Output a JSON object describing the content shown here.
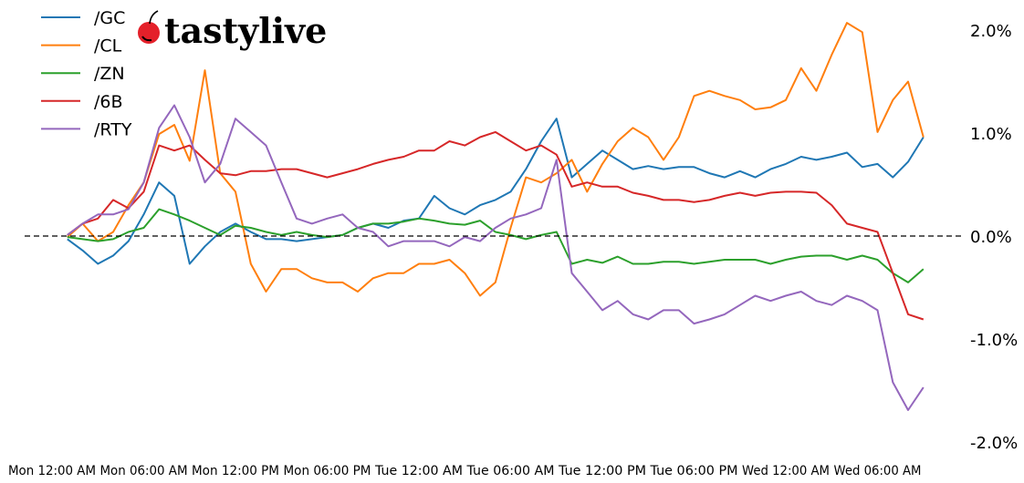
{
  "logo": {
    "text": "tastylive",
    "cherry_color": "#e4202a"
  },
  "chart_data": {
    "type": "line",
    "title": "",
    "xlabel": "",
    "ylabel": "",
    "ylim": [
      -2.0,
      2.0
    ],
    "grid": false,
    "legend_placement": "top-left",
    "zero_line": {
      "value": 0,
      "style": "dashed",
      "color": "#000000"
    },
    "y_ticks": [
      {
        "value": 2.0,
        "label": "2.0%"
      },
      {
        "value": 1.0,
        "label": "1.0%"
      },
      {
        "value": 0.0,
        "label": "0.0%"
      },
      {
        "value": -1.0,
        "label": "-1.0%"
      },
      {
        "value": -2.0,
        "label": "-2.0%"
      }
    ],
    "x_ticks": [
      {
        "value": "Mon 00:00",
        "label": "Mon 12:00 AM"
      },
      {
        "value": "Mon 06:00",
        "label": "Mon 06:00 AM"
      },
      {
        "value": "Mon 12:00",
        "label": "Mon 12:00 PM"
      },
      {
        "value": "Mon 18:00",
        "label": "Mon 06:00 PM"
      },
      {
        "value": "Tue 00:00",
        "label": "Tue 12:00 AM"
      },
      {
        "value": "Tue 06:00",
        "label": "Tue 06:00 AM"
      },
      {
        "value": "Tue 12:00",
        "label": "Tue 12:00 PM"
      },
      {
        "value": "Tue 18:00",
        "label": "Tue 06:00 PM"
      },
      {
        "value": "Wed 00:00",
        "label": "Wed 12:00 AM"
      },
      {
        "value": "Wed 06:00",
        "label": "Wed 06:00 AM"
      }
    ],
    "x": [
      "Mon 01:00",
      "Mon 02:00",
      "Mon 03:00",
      "Mon 04:00",
      "Mon 05:00",
      "Mon 06:00",
      "Mon 07:00",
      "Mon 08:00",
      "Mon 09:00",
      "Mon 10:00",
      "Mon 11:00",
      "Mon 12:00",
      "Mon 13:00",
      "Mon 14:00",
      "Mon 15:00",
      "Mon 16:00",
      "Mon 17:00",
      "Mon 18:00",
      "Mon 19:00",
      "Mon 20:00",
      "Mon 21:00",
      "Mon 22:00",
      "Mon 23:00",
      "Tue 00:00",
      "Tue 01:00",
      "Tue 02:00",
      "Tue 03:00",
      "Tue 04:00",
      "Tue 05:00",
      "Tue 06:00",
      "Tue 07:00",
      "Tue 08:00",
      "Tue 09:00",
      "Tue 10:00",
      "Tue 11:00",
      "Tue 12:00",
      "Tue 13:00",
      "Tue 14:00",
      "Tue 15:00",
      "Tue 16:00",
      "Tue 17:00",
      "Tue 18:00",
      "Tue 19:00",
      "Tue 20:00",
      "Tue 21:00",
      "Tue 22:00",
      "Tue 23:00",
      "Wed 00:00",
      "Wed 01:00",
      "Wed 02:00",
      "Wed 03:00",
      "Wed 04:00",
      "Wed 05:00",
      "Wed 06:00",
      "Wed 07:00",
      "Wed 08:00",
      "Wed 09:00"
    ],
    "series": [
      {
        "name": "/GC",
        "color": "#1f77b4",
        "values": [
          -0.03,
          -0.14,
          -0.27,
          -0.19,
          -0.05,
          0.21,
          0.52,
          0.39,
          -0.27,
          -0.1,
          0.04,
          0.12,
          0.04,
          -0.03,
          -0.03,
          -0.05,
          -0.03,
          -0.01,
          0.01,
          0.08,
          0.12,
          0.08,
          0.15,
          0.17,
          0.39,
          0.27,
          0.21,
          0.3,
          0.35,
          0.43,
          0.65,
          0.92,
          1.14,
          0.57,
          0.7,
          0.83,
          0.74,
          0.65,
          0.68,
          0.65,
          0.67,
          0.67,
          0.61,
          0.57,
          0.63,
          0.57,
          0.65,
          0.7,
          0.77,
          0.74,
          0.77,
          0.81,
          0.67,
          0.7,
          0.57,
          0.72,
          0.96
        ]
      },
      {
        "name": "/CL",
        "color": "#ff7f0e",
        "values": [
          -0.01,
          0.12,
          -0.05,
          0.04,
          0.3,
          0.52,
          0.99,
          1.08,
          0.73,
          1.61,
          0.61,
          0.43,
          -0.27,
          -0.54,
          -0.32,
          -0.32,
          -0.41,
          -0.45,
          -0.45,
          -0.54,
          -0.41,
          -0.36,
          -0.36,
          -0.27,
          -0.27,
          -0.23,
          -0.36,
          -0.58,
          -0.45,
          0.08,
          0.57,
          0.52,
          0.61,
          0.74,
          0.43,
          0.7,
          0.92,
          1.05,
          0.96,
          0.74,
          0.96,
          1.36,
          1.41,
          1.36,
          1.32,
          1.23,
          1.25,
          1.32,
          1.63,
          1.41,
          1.76,
          2.07,
          1.98,
          1.01,
          1.32,
          1.5,
          0.96
        ]
      },
      {
        "name": "/ZN",
        "color": "#2ca02c",
        "values": [
          -0.01,
          -0.03,
          -0.05,
          -0.03,
          0.04,
          0.08,
          0.26,
          0.21,
          0.15,
          0.08,
          0.01,
          0.1,
          0.08,
          0.04,
          0.01,
          0.04,
          0.01,
          -0.01,
          0.01,
          0.08,
          0.12,
          0.12,
          0.14,
          0.17,
          0.15,
          0.12,
          0.11,
          0.15,
          0.04,
          0.01,
          -0.03,
          0.01,
          0.04,
          -0.27,
          -0.23,
          -0.26,
          -0.2,
          -0.27,
          -0.27,
          -0.25,
          -0.25,
          -0.27,
          -0.25,
          -0.23,
          -0.23,
          -0.23,
          -0.27,
          -0.23,
          -0.2,
          -0.19,
          -0.19,
          -0.23,
          -0.19,
          -0.23,
          -0.36,
          -0.45,
          -0.32
        ]
      },
      {
        "name": "/6B",
        "color": "#d62728",
        "values": [
          0.01,
          0.12,
          0.17,
          0.35,
          0.27,
          0.43,
          0.88,
          0.83,
          0.88,
          0.74,
          0.61,
          0.59,
          0.63,
          0.63,
          0.65,
          0.65,
          0.61,
          0.57,
          0.61,
          0.65,
          0.7,
          0.74,
          0.77,
          0.83,
          0.83,
          0.92,
          0.88,
          0.96,
          1.01,
          0.92,
          0.83,
          0.88,
          0.79,
          0.48,
          0.52,
          0.48,
          0.48,
          0.42,
          0.39,
          0.35,
          0.35,
          0.33,
          0.35,
          0.39,
          0.42,
          0.39,
          0.42,
          0.43,
          0.43,
          0.42,
          0.3,
          0.12,
          0.08,
          0.04,
          -0.36,
          -0.76,
          -0.81
        ]
      },
      {
        "name": "/RTY",
        "color": "#9467bd",
        "values": [
          0.01,
          0.12,
          0.21,
          0.21,
          0.26,
          0.52,
          1.05,
          1.27,
          0.96,
          0.52,
          0.7,
          1.14,
          1.01,
          0.88,
          0.52,
          0.17,
          0.12,
          0.17,
          0.21,
          0.08,
          0.04,
          -0.1,
          -0.05,
          -0.05,
          -0.05,
          -0.1,
          -0.01,
          -0.05,
          0.08,
          0.17,
          0.21,
          0.27,
          0.74,
          -0.36,
          -0.54,
          -0.72,
          -0.63,
          -0.76,
          -0.81,
          -0.72,
          -0.72,
          -0.85,
          -0.81,
          -0.76,
          -0.67,
          -0.58,
          -0.63,
          -0.58,
          -0.54,
          -0.63,
          -0.67,
          -0.58,
          -0.63,
          -0.72,
          -1.42,
          -1.69,
          -1.47
        ]
      }
    ]
  }
}
